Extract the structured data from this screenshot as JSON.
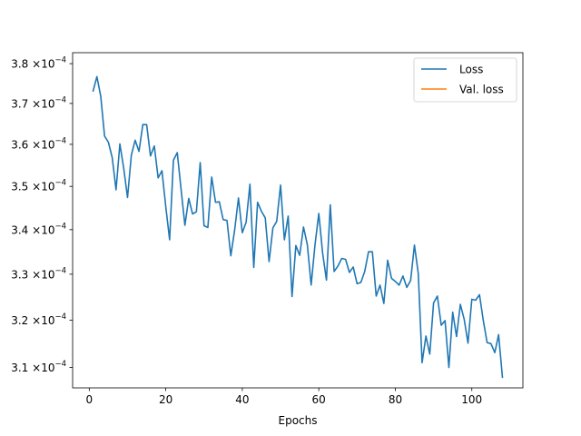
{
  "chart_data": {
    "type": "line",
    "xlabel": "Epochs",
    "ylabel": "",
    "xlim": [
      -4.35,
      113.35
    ],
    "ylim": [
      0.0003058,
      0.0003828
    ],
    "y_scale": "log",
    "grid": false,
    "legend_position": "top-right",
    "x_ticks": [
      0,
      20,
      40,
      60,
      80,
      100
    ],
    "x_tick_labels": [
      "0",
      "20",
      "40",
      "60",
      "80",
      "100"
    ],
    "y_ticks": [
      0.00031,
      0.00032,
      0.00033,
      0.00034,
      0.00035,
      0.00036,
      0.00037,
      0.00038
    ],
    "y_tick_mantissas": [
      "3.1",
      "3.2",
      "3.3",
      "3.4",
      "3.5",
      "3.6",
      "3.7",
      "3.8"
    ],
    "y_tick_base": "×10",
    "y_tick_exponent": "−4",
    "series": [
      {
        "name": "Loss",
        "color": "#1f77b4",
        "x": [
          1,
          2,
          3,
          4,
          5,
          6,
          7,
          8,
          9,
          10,
          11,
          12,
          13,
          14,
          15,
          16,
          17,
          18,
          19,
          20,
          21,
          22,
          23,
          24,
          25,
          26,
          27,
          28,
          29,
          30,
          31,
          32,
          33,
          34,
          35,
          36,
          37,
          38,
          39,
          40,
          41,
          42,
          43,
          44,
          45,
          46,
          47,
          48,
          49,
          50,
          51,
          52,
          53,
          54,
          55,
          56,
          57,
          58,
          59,
          60,
          61,
          62,
          63,
          64,
          65,
          66,
          67,
          68,
          69,
          70,
          71,
          72,
          73,
          74,
          75,
          76,
          77,
          78,
          79,
          80,
          81,
          82,
          83,
          84,
          85,
          86,
          87,
          88,
          89,
          90,
          91,
          92,
          93,
          94,
          95,
          96,
          97,
          98,
          99,
          100,
          101,
          102,
          103,
          104,
          105,
          106,
          107,
          108
        ],
        "values": [
          0.0003731,
          0.0003767,
          0.0003718,
          0.000362,
          0.0003605,
          0.0003568,
          0.0003492,
          0.0003601,
          0.0003543,
          0.0003474,
          0.0003574,
          0.000361,
          0.0003583,
          0.0003648,
          0.0003648,
          0.0003572,
          0.0003596,
          0.000352,
          0.0003537,
          0.0003453,
          0.0003377,
          0.0003562,
          0.000358,
          0.0003493,
          0.000341,
          0.0003472,
          0.0003436,
          0.0003441,
          0.0003556,
          0.0003409,
          0.0003405,
          0.0003522,
          0.0003463,
          0.0003464,
          0.0003423,
          0.0003421,
          0.0003341,
          0.0003399,
          0.0003473,
          0.0003393,
          0.0003417,
          0.0003505,
          0.0003315,
          0.0003463,
          0.0003442,
          0.0003427,
          0.0003328,
          0.0003404,
          0.0003419,
          0.0003503,
          0.0003377,
          0.0003431,
          0.0003251,
          0.0003364,
          0.0003342,
          0.0003406,
          0.0003366,
          0.0003276,
          0.0003365,
          0.0003437,
          0.0003347,
          0.0003287,
          0.0003457,
          0.0003306,
          0.0003318,
          0.0003335,
          0.0003333,
          0.0003304,
          0.0003316,
          0.0003279,
          0.0003282,
          0.0003306,
          0.000335,
          0.000335,
          0.0003252,
          0.0003276,
          0.0003236,
          0.0003331,
          0.0003291,
          0.0003284,
          0.0003276,
          0.0003296,
          0.0003271,
          0.0003286,
          0.0003365,
          0.0003302,
          0.000311,
          0.0003166,
          0.0003128,
          0.0003237,
          0.0003252,
          0.0003189,
          0.0003199,
          0.00031,
          0.0003217,
          0.0003165,
          0.0003234,
          0.0003202,
          0.0003151,
          0.0003245,
          0.0003243,
          0.0003255,
          0.0003199,
          0.0003152,
          0.000315,
          0.0003131,
          0.0003169,
          0.000308
        ]
      },
      {
        "name": "Val. loss",
        "color": "#ff7f0e",
        "x": [],
        "values": []
      }
    ]
  }
}
